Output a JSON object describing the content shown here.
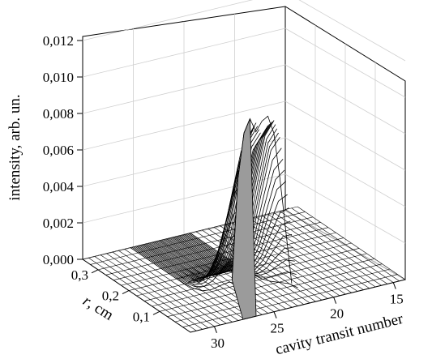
{
  "chart_data": {
    "type": "surface3d",
    "zlabel": "intensity, arb. un.",
    "ylabel_italic": "r",
    "ylabel_unit": ", cm",
    "xlabel": "cavity transit number",
    "z_ticks": [
      "0,000",
      "0,002",
      "0,004",
      "0,006",
      "0,008",
      "0,010",
      "0,012"
    ],
    "r_ticks": [
      "0,3",
      "0,2",
      "0,1"
    ],
    "x_ticks": [
      "15",
      "20",
      "25",
      "30"
    ],
    "zlim": [
      0,
      0.013
    ],
    "xlim": [
      14,
      32
    ],
    "rlim": [
      0,
      0.35
    ],
    "peak": {
      "transit_numbers": [
        23,
        23.5,
        24,
        24.5,
        25,
        25.5,
        26,
        26.5,
        27,
        27.5,
        28
      ],
      "max_intensity_profile": [
        0.001,
        0.004,
        0.007,
        0.0095,
        0.0105,
        0.0103,
        0.0098,
        0.0106,
        0.0099,
        0.0075,
        0.002
      ],
      "r_center": 0
    },
    "grid": true
  }
}
